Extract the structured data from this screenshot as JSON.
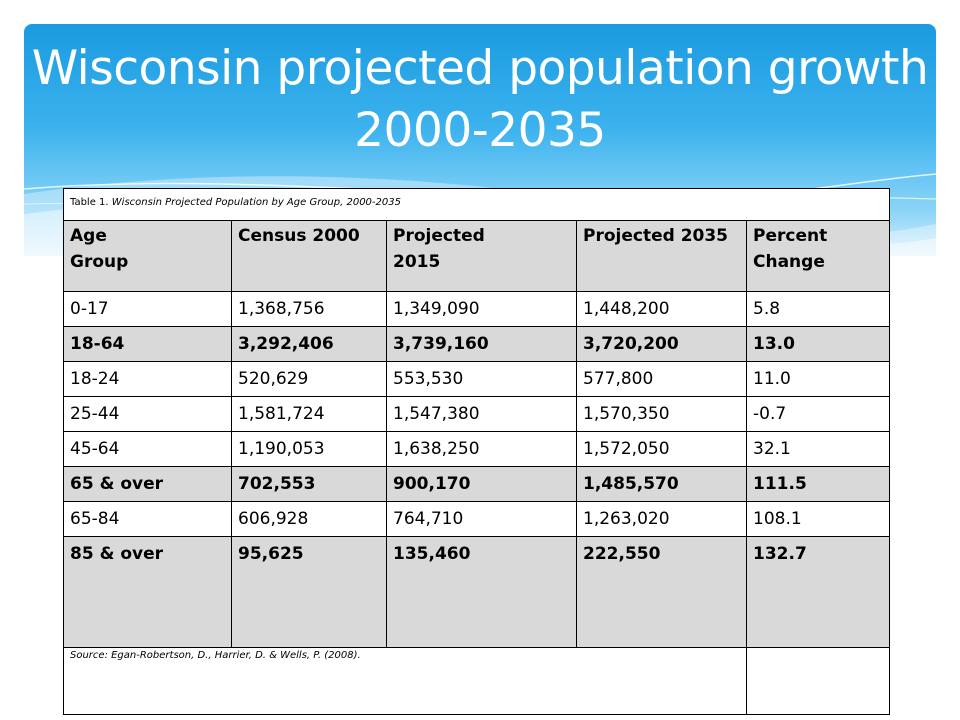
{
  "slide": {
    "title": "Wisconsin projected population growth 2000-2035"
  },
  "table": {
    "caption_prefix": "Table 1.",
    "caption_italic": "Wisconsin Projected Population by Age Group, 2000-2035",
    "headers": [
      [
        "Age",
        "Group"
      ],
      [
        "Census 2000",
        ""
      ],
      [
        "Projected",
        "2015"
      ],
      [
        "Projected 2035",
        ""
      ],
      [
        "Percent",
        "Change"
      ]
    ],
    "rows": [
      {
        "cells": [
          "0-17",
          "1,368,756",
          "1,349,090",
          "1,448,200",
          "5.8"
        ],
        "bold": false,
        "shaded": false
      },
      {
        "cells": [
          "18-64",
          "3,292,406",
          "3,739,160",
          "3,720,200",
          "13.0"
        ],
        "bold": true,
        "shaded": true
      },
      {
        "cells": [
          "18-24",
          "520,629",
          "553,530",
          "577,800",
          "11.0"
        ],
        "bold": false,
        "shaded": false
      },
      {
        "cells": [
          "25-44",
          "1,581,724",
          "1,547,380",
          "1,570,350",
          "-0.7"
        ],
        "bold": false,
        "shaded": false
      },
      {
        "cells": [
          "45-64",
          "1,190,053",
          "1,638,250",
          "1,572,050",
          "32.1"
        ],
        "bold": false,
        "shaded": false
      },
      {
        "cells": [
          "65 & over",
          "702,553",
          "900,170",
          "1,485,570",
          "111.5"
        ],
        "bold": true,
        "shaded": true
      },
      {
        "cells": [
          "65-84",
          "606,928",
          "764,710",
          "1,263,020",
          "108.1"
        ],
        "bold": false,
        "shaded": false
      },
      {
        "cells": [
          "85 & over",
          "95,625",
          "135,460",
          "222,550",
          "132.7"
        ],
        "bold": true,
        "shaded": true
      }
    ],
    "source": "Source: Egan-Robertson, D., Harrier, D. & Wells, P. (2008)."
  },
  "colors": {
    "banner_top": "#1a9be0",
    "banner_bottom": "#d6eefb",
    "header_fill": "#d9d9d9"
  }
}
